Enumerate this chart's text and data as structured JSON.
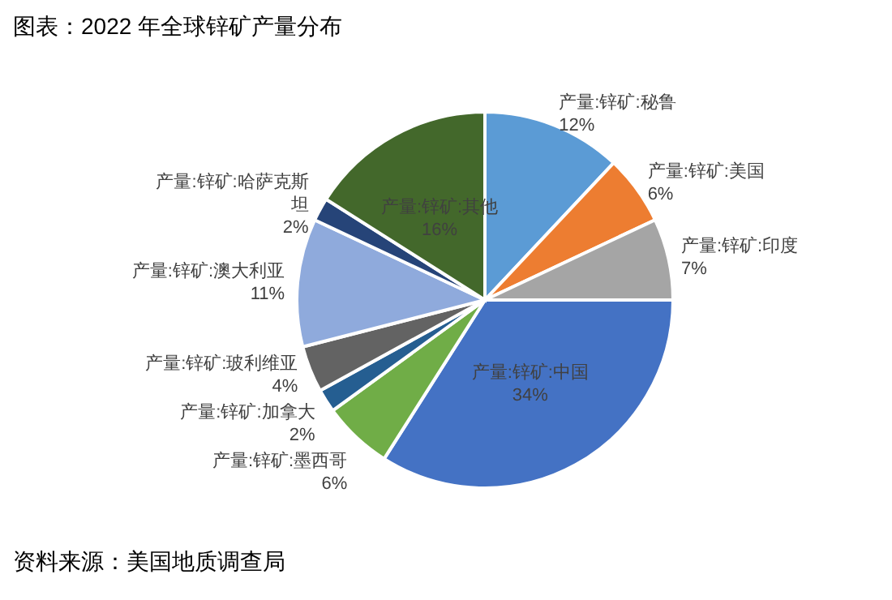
{
  "chart_data": {
    "type": "pie",
    "title": "图表：2022 年全球锌矿产量分布",
    "categories": [
      "产量:锌矿:秘鲁",
      "产量:锌矿:美国",
      "产量:锌矿:印度",
      "产量:锌矿:中国",
      "产量:锌矿:墨西哥",
      "产量:锌矿:加拿大",
      "产量:锌矿:玻利维亚",
      "产量:锌矿:澳大利亚",
      "产量:锌矿:哈萨克斯坦",
      "产量:锌矿:其他"
    ],
    "values": [
      12,
      6,
      7,
      34,
      6,
      2,
      4,
      11,
      2,
      16
    ],
    "value_labels": [
      "12%",
      "6%",
      "7%",
      "34%",
      "6%",
      "2%",
      "4%",
      "11%",
      "2%",
      "16%"
    ],
    "colors": [
      "#5b9bd5",
      "#ed7d31",
      "#a5a5a5",
      "#4472c4",
      "#70ad47",
      "#255e91",
      "#636363",
      "#8faadc",
      "#264478",
      "#43682b"
    ],
    "legend": false,
    "annotations": [
      "资料来源：美国地质调查局"
    ]
  }
}
